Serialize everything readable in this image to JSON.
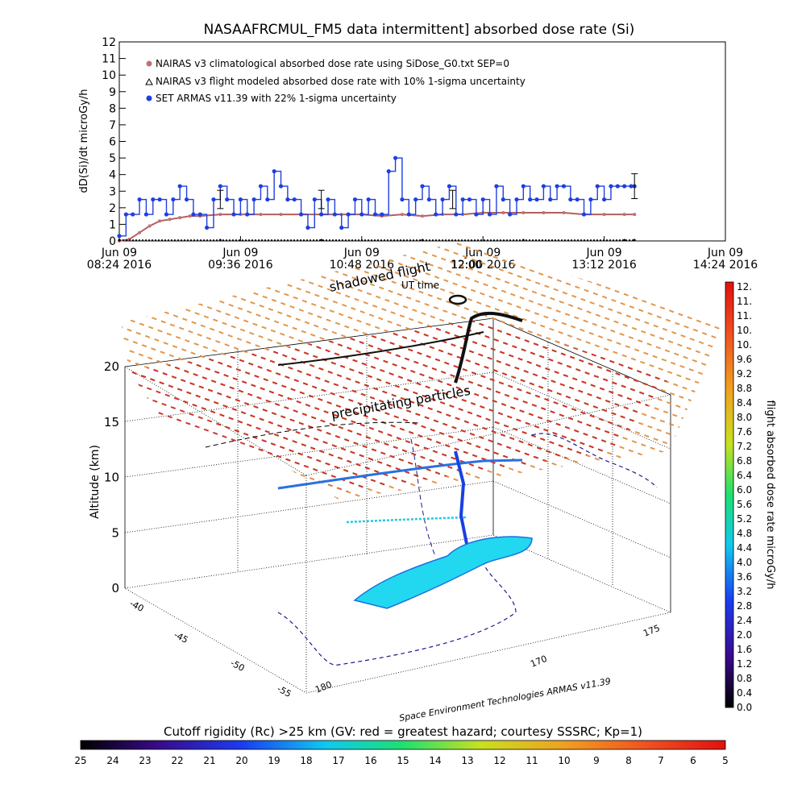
{
  "title": "NASAAFRCMUL_FM5 data intermittent] absorbed dose rate (Si)",
  "colors": {
    "blue": "#1f3fe0",
    "brown": "#b06060",
    "red": "#cc2a1a",
    "orange": "#e08838",
    "cyan": "#22d8f0"
  },
  "chart_data": [
    {
      "type": "line",
      "ylabel": "dD(Si)/dt microGy/h",
      "ylim": [
        0,
        12
      ],
      "xlim": [
        0,
        360
      ],
      "y_ticks": [
        "0",
        "1",
        "2",
        "3",
        "4",
        "5",
        "6",
        "7",
        "8",
        "9",
        "10",
        "11",
        "12"
      ],
      "x_ticks": [
        {
          "date": "Jun 09",
          "time": "08:24 2016"
        },
        {
          "date": "Jun 09",
          "time": "09:36 2016"
        },
        {
          "date": "Jun 09",
          "time": "10:48 2016"
        },
        {
          "date": "Jun 09",
          "time": "12:00 2016"
        },
        {
          "date": "Jun 09",
          "time": "13:12 2016"
        },
        {
          "date": "Jun 09",
          "time": "14:24 2016"
        }
      ],
      "legend": [
        "NAIRAS v3 climatological absorbed dose rate using SiDose_G0.txt SEP=0",
        "NAIRAS v3 flight modeled absorbed dose rate with 10% 1-sigma uncertainty",
        "SET ARMAS v11.39 with 22% 1-sigma uncertainty"
      ],
      "series": [
        {
          "name": "NAIRAS v3 climatological absorbed dose rate using SiDose_G0.txt SEP=0",
          "x": [
            0,
            6,
            12,
            18,
            24,
            30,
            36,
            42,
            48,
            60,
            72,
            84,
            96,
            108,
            120,
            132,
            144,
            156,
            168,
            180,
            192,
            204,
            216,
            228,
            240,
            252,
            264,
            276,
            288,
            300,
            306
          ],
          "values": [
            0,
            0.1,
            0.5,
            0.9,
            1.2,
            1.3,
            1.4,
            1.5,
            1.5,
            1.6,
            1.6,
            1.6,
            1.6,
            1.6,
            1.6,
            1.6,
            1.6,
            1.5,
            1.6,
            1.5,
            1.6,
            1.6,
            1.7,
            1.7,
            1.7,
            1.7,
            1.7,
            1.6,
            1.6,
            1.6,
            1.6
          ]
        },
        {
          "name": "NAIRAS v3 flight modeled absorbed dose rate with 10% 1-sigma uncertainty",
          "x": [
            0,
            60,
            120,
            180,
            240,
            300,
            306
          ],
          "values": [
            0,
            0,
            0,
            0,
            0,
            0,
            0
          ]
        },
        {
          "name": "SET ARMAS v11.39 with 22% 1-sigma uncertainty",
          "x": [
            0,
            4,
            8,
            12,
            16,
            20,
            24,
            28,
            32,
            36,
            40,
            44,
            48,
            52,
            56,
            60,
            64,
            68,
            72,
            76,
            80,
            84,
            88,
            92,
            96,
            100,
            104,
            108,
            112,
            116,
            120,
            124,
            128,
            132,
            136,
            140,
            144,
            148,
            152,
            156,
            160,
            164,
            168,
            172,
            176,
            180,
            184,
            188,
            192,
            196,
            200,
            204,
            208,
            212,
            216,
            220,
            224,
            228,
            232,
            236,
            240,
            244,
            248,
            252,
            256,
            260,
            264,
            268,
            272,
            276,
            280,
            284,
            288,
            292,
            296,
            300,
            304,
            306
          ],
          "values": [
            0.3,
            1.6,
            1.6,
            2.5,
            1.6,
            2.5,
            2.5,
            1.6,
            2.5,
            3.3,
            2.5,
            1.6,
            1.6,
            0.8,
            2.5,
            3.3,
            2.5,
            1.6,
            2.5,
            1.6,
            2.5,
            3.3,
            2.5,
            4.2,
            3.3,
            2.5,
            2.5,
            1.6,
            0.8,
            2.5,
            1.6,
            2.5,
            1.6,
            0.8,
            1.6,
            2.5,
            1.6,
            2.5,
            1.6,
            1.6,
            4.2,
            5.0,
            2.5,
            1.6,
            2.5,
            3.3,
            2.5,
            1.6,
            2.5,
            3.3,
            1.6,
            2.5,
            2.5,
            1.6,
            2.5,
            1.6,
            3.3,
            2.5,
            1.6,
            2.5,
            3.3,
            2.5,
            2.5,
            3.3,
            2.5,
            3.3,
            3.3,
            2.5,
            2.5,
            1.6,
            2.5,
            3.3,
            2.5,
            3.3,
            3.3,
            3.3,
            3.3,
            3.3
          ]
        }
      ]
    },
    {
      "type": "scatter",
      "zlabel": "Altitude (km)",
      "zlim": [
        0,
        20
      ],
      "z_ticks": [
        "0",
        "5",
        "10",
        "15",
        "20"
      ],
      "lat_ticks": [
        "-40",
        "-45",
        "-50",
        "-55"
      ],
      "lon_ticks": [
        "180",
        "170",
        "175"
      ],
      "annotations": [
        "shadowed flight",
        "UT time",
        "precipitating particles",
        "12:00",
        "Space Environment Technologies ARMAS v11.39"
      ]
    }
  ],
  "colorbar_right": {
    "label": "flight absorbed dose rate microGy/h",
    "ticks": [
      "12.",
      "11.",
      "11.",
      "10.",
      "10.",
      "9.6",
      "9.2",
      "8.8",
      "8.4",
      "8.0",
      "7.6",
      "7.2",
      "6.8",
      "6.4",
      "6.0",
      "5.6",
      "5.2",
      "4.8",
      "4.4",
      "4.0",
      "3.6",
      "3.2",
      "2.8",
      "2.4",
      "2.0",
      "1.6",
      "1.2",
      "0.8",
      "0.4",
      "0.0"
    ]
  },
  "colorbar_bottom": {
    "label": "Cutoff rigidity (Rc) >25 km (GV: red = greatest hazard; courtesy SSSRC; Kp=1)",
    "ticks": [
      "25",
      "24",
      "23",
      "22",
      "21",
      "20",
      "19",
      "18",
      "17",
      "16",
      "15",
      "14",
      "13",
      "12",
      "11",
      "10",
      "9",
      "8",
      "7",
      "6",
      "5"
    ]
  }
}
